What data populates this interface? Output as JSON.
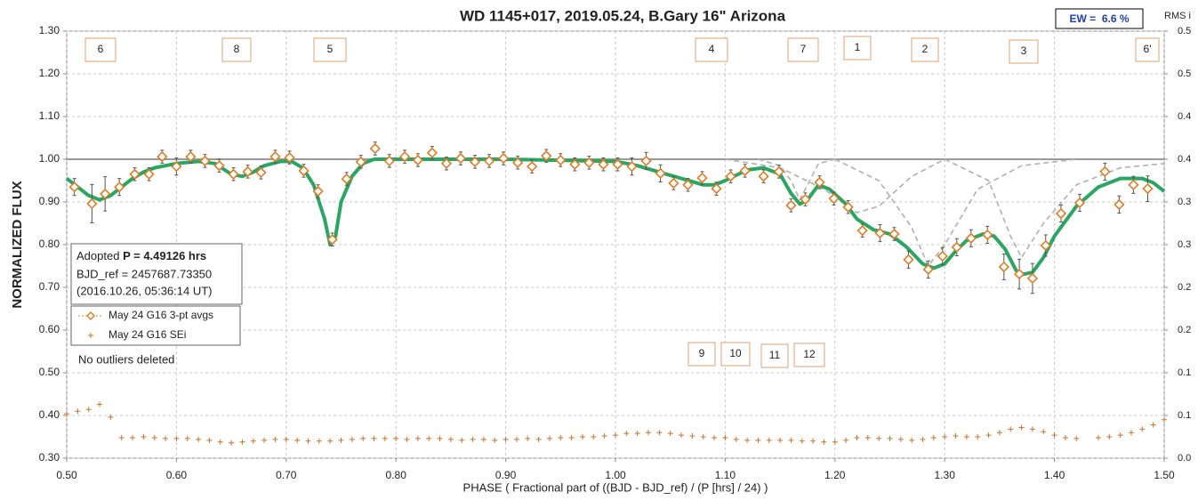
{
  "chart_data": {
    "type": "line",
    "title": "WD 1145+017, 2019.05.24, B.Gary 16\" Arizona",
    "ew_label": "EW =  6.6 %",
    "y2_axis_label": "RMS i",
    "y_axis_label": "NORMALIZED FLUX",
    "x_axis_label": "PHASE ( Fractional part of ((BJD - BJD_ref) / (P [hrs] / 24) )",
    "info_box": {
      "adopted": "Adopted",
      "period": "P = 4.49126 hrs",
      "bjd_ref": "BJD_ref = 2457687.73350",
      "date": "(2016.10.26, 05:36:14 UT)"
    },
    "note": "No outliers deleted",
    "annotations": [
      "6",
      "8",
      "5",
      "4",
      "7",
      "1",
      "2",
      "3",
      "6'",
      "9",
      "10",
      "11",
      "12"
    ],
    "grid": true,
    "reference_line": 1,
    "xlim": [
      0.5,
      1.5
    ],
    "ylim": [
      0.3,
      1.3
    ],
    "y2lim": [
      0,
      0.5
    ],
    "xticks": [
      {
        "value": 0.5,
        "label": "0.50"
      },
      {
        "value": 0.6,
        "label": "0.60"
      },
      {
        "value": 0.7,
        "label": "0.70"
      },
      {
        "value": 0.8,
        "label": "0.80"
      },
      {
        "value": 0.9,
        "label": "0.90"
      },
      {
        "value": 1,
        "label": "1.00"
      },
      {
        "value": 1.1,
        "label": "1.10"
      },
      {
        "value": 1.2,
        "label": "1.20"
      },
      {
        "value": 1.3,
        "label": "1.30"
      },
      {
        "value": 1.4,
        "label": "1.40"
      },
      {
        "value": 1.5,
        "label": "1.50"
      }
    ],
    "yticks": [
      {
        "value": 0.3,
        "label": "0.30"
      },
      {
        "value": 0.4,
        "label": "0.40"
      },
      {
        "value": 0.5,
        "label": "0.50"
      },
      {
        "value": 0.6,
        "label": "0.60"
      },
      {
        "value": 0.7,
        "label": "0.70"
      },
      {
        "value": 0.8,
        "label": "0.80"
      },
      {
        "value": 0.9,
        "label": "0.90"
      },
      {
        "value": 1,
        "label": "1.00"
      },
      {
        "value": 1.1,
        "label": "1.10"
      },
      {
        "value": 1.2,
        "label": "1.20"
      },
      {
        "value": 1.3,
        "label": "1.30"
      }
    ],
    "y2ticks": [
      {
        "value": 0,
        "label": "0.0"
      },
      {
        "value": 0.05,
        "label": "0.1"
      },
      0.1,
      {
        "value": 0.15,
        "label": "0.2"
      },
      0.2,
      {
        "value": 0.25,
        "label": "0.3"
      },
      0.3,
      {
        "value": 0.35,
        "label": "0.4"
      },
      0.4,
      {
        "value": 0.45,
        "label": "0.5"
      },
      0.5
    ],
    "series": [
      {
        "name": "May 24 G16 3-pt avgs",
        "color": "#e07b24",
        "marker": "diamond",
        "x": [
          0.507,
          0.523,
          0.535,
          0.548,
          0.562,
          0.575,
          0.587,
          0.6,
          0.613,
          0.626,
          0.639,
          0.652,
          0.665,
          0.677,
          0.69,
          0.703,
          0.716,
          0.729,
          0.742,
          0.755,
          0.768,
          0.781,
          0.794,
          0.808,
          0.82,
          0.833,
          0.846,
          0.859,
          0.872,
          0.885,
          0.898,
          0.911,
          0.924,
          0.937,
          0.95,
          0.963,
          0.976,
          0.989,
          1.002,
          1.015,
          1.028,
          1.041,
          1.053,
          1.066,
          1.079,
          1.092,
          1.105,
          1.118,
          1.135,
          1.149,
          1.16,
          1.173,
          1.186,
          1.199,
          1.212,
          1.225,
          1.241,
          1.254,
          1.267,
          1.285,
          1.298,
          1.311,
          1.324,
          1.339,
          1.354,
          1.368,
          1.38,
          1.392,
          1.406,
          1.423,
          1.446,
          1.459,
          1.472,
          1.485
        ],
        "values": [
          0.935,
          0.896,
          0.919,
          0.935,
          0.965,
          0.965,
          1.006,
          0.983,
          1.006,
          0.996,
          0.985,
          0.965,
          0.971,
          0.969,
          1.006,
          1.004,
          0.973,
          0.925,
          0.812,
          0.954,
          0.994,
          1.025,
          0.996,
          1.006,
          0.998,
          1.015,
          0.99,
          1.002,
          0.994,
          0.996,
          1.002,
          0.992,
          0.983,
          1.008,
          0.998,
          0.988,
          0.992,
          0.988,
          0.988,
          0.983,
          0.996,
          0.967,
          0.944,
          0.94,
          0.956,
          0.931,
          0.96,
          0.973,
          0.96,
          0.971,
          0.892,
          0.906,
          0.946,
          0.908,
          0.888,
          0.833,
          0.827,
          0.825,
          0.765,
          0.742,
          0.773,
          0.794,
          0.815,
          0.823,
          0.748,
          0.731,
          0.721,
          0.798,
          0.873,
          0.898,
          0.971,
          0.894,
          0.94,
          0.931
        ],
        "errors": [
          0.02,
          0.045,
          0.04,
          0.02,
          0.015,
          0.015,
          0.015,
          0.02,
          0.015,
          0.015,
          0.015,
          0.015,
          0.015,
          0.015,
          0.015,
          0.015,
          0.015,
          0.015,
          0.015,
          0.015,
          0.015,
          0.015,
          0.015,
          0.015,
          0.015,
          0.015,
          0.015,
          0.015,
          0.015,
          0.015,
          0.015,
          0.015,
          0.015,
          0.015,
          0.015,
          0.015,
          0.015,
          0.015,
          0.015,
          0.02,
          0.02,
          0.02,
          0.015,
          0.015,
          0.015,
          0.015,
          0.015,
          0.015,
          0.015,
          0.015,
          0.015,
          0.015,
          0.015,
          0.015,
          0.015,
          0.015,
          0.02,
          0.015,
          0.02,
          0.02,
          0.02,
          0.02,
          0.02,
          0.02,
          0.03,
          0.035,
          0.035,
          0.025,
          0.02,
          0.02,
          0.02,
          0.02,
          0.02,
          0.03
        ]
      },
      {
        "name": "May 24 G16 SEi",
        "color": "#c8742c",
        "marker": "plus",
        "axis": "y2",
        "x": [
          0.5,
          0.51,
          0.52,
          0.53,
          0.54,
          0.55,
          0.56,
          0.57,
          0.58,
          0.59,
          0.6,
          0.61,
          0.62,
          0.63,
          0.64,
          0.65,
          0.66,
          0.67,
          0.68,
          0.69,
          0.7,
          0.71,
          0.72,
          0.73,
          0.74,
          0.75,
          0.76,
          0.77,
          0.78,
          0.79,
          0.8,
          0.81,
          0.82,
          0.83,
          0.84,
          0.85,
          0.86,
          0.87,
          0.88,
          0.89,
          0.9,
          0.91,
          0.92,
          0.93,
          0.94,
          0.95,
          0.96,
          0.97,
          0.98,
          0.99,
          1.0,
          1.01,
          1.02,
          1.03,
          1.04,
          1.05,
          1.06,
          1.07,
          1.08,
          1.09,
          1.1,
          1.11,
          1.12,
          1.13,
          1.14,
          1.15,
          1.16,
          1.17,
          1.18,
          1.19,
          1.2,
          1.21,
          1.22,
          1.23,
          1.24,
          1.25,
          1.26,
          1.27,
          1.28,
          1.29,
          1.3,
          1.31,
          1.32,
          1.33,
          1.34,
          1.35,
          1.36,
          1.37,
          1.38,
          1.39,
          1.4,
          1.41,
          1.42,
          1.43,
          1.44,
          1.45,
          1.46,
          1.47,
          1.48,
          1.49,
          1.5
        ],
        "values": [
          0.052,
          0.055,
          0.057,
          0.063,
          0.048,
          0.024,
          0.024,
          0.025,
          0.024,
          0.023,
          0.023,
          0.023,
          0.022,
          0.021,
          0.019,
          0.018,
          0.019,
          0.02,
          0.021,
          0.022,
          0.022,
          0.021,
          0.02,
          0.02,
          0.02,
          0.021,
          0.022,
          0.023,
          0.023,
          0.023,
          0.023,
          0.022,
          0.023,
          0.023,
          0.023,
          0.022,
          0.021,
          0.022,
          0.022,
          0.021,
          0.022,
          0.022,
          0.023,
          0.022,
          0.023,
          0.024,
          0.024,
          0.025,
          0.025,
          0.026,
          0.027,
          0.029,
          0.029,
          0.03,
          0.03,
          0.029,
          0.027,
          0.026,
          0.025,
          0.024,
          0.024,
          0.022,
          0.021,
          0.021,
          0.021,
          0.021,
          0.021,
          0.02,
          0.02,
          0.019,
          0.019,
          0.021,
          0.024,
          0.024,
          0.023,
          0.023,
          0.022,
          0.021,
          0.022,
          0.024,
          0.025,
          0.026,
          0.025,
          0.025,
          0.027,
          0.03,
          0.034,
          0.036,
          0.034,
          0.031,
          0.027,
          0.024,
          0.023,
          null,
          0.024,
          0.025,
          0.027,
          0.03,
          0.034,
          0.039,
          0.045
        ]
      },
      {
        "color": "#2ba562",
        "line_style": "solid",
        "x": [
          0.5,
          0.51,
          0.52,
          0.53,
          0.54,
          0.55,
          0.56,
          0.57,
          0.58,
          0.6,
          0.62,
          0.635,
          0.65,
          0.66,
          0.67,
          0.68,
          0.695,
          0.705,
          0.715,
          0.725,
          0.735,
          0.74,
          0.745,
          0.75,
          0.76,
          0.77,
          0.78,
          0.8,
          0.9,
          1.0,
          1.02,
          1.04,
          1.06,
          1.08,
          1.09,
          1.1,
          1.12,
          1.135,
          1.15,
          1.16,
          1.168,
          1.175,
          1.185,
          1.195,
          1.21,
          1.22,
          1.235,
          1.25,
          1.265,
          1.28,
          1.29,
          1.3,
          1.31,
          1.32,
          1.335,
          1.345,
          1.355,
          1.365,
          1.37,
          1.38,
          1.39,
          1.4,
          1.42,
          1.44,
          1.46,
          1.48,
          1.49,
          1.5
        ],
        "values": [
          0.955,
          0.935,
          0.915,
          0.905,
          0.915,
          0.935,
          0.955,
          0.97,
          0.98,
          0.99,
          0.995,
          0.99,
          0.965,
          0.96,
          0.97,
          0.985,
          0.995,
          0.995,
          0.98,
          0.94,
          0.86,
          0.8,
          0.82,
          0.9,
          0.96,
          0.99,
          1.0,
          1.0,
          1.0,
          0.995,
          0.985,
          0.97,
          0.955,
          0.94,
          0.94,
          0.95,
          0.975,
          0.98,
          0.965,
          0.92,
          0.895,
          0.905,
          0.94,
          0.93,
          0.895,
          0.86,
          0.835,
          0.825,
          0.795,
          0.755,
          0.745,
          0.755,
          0.785,
          0.81,
          0.825,
          0.82,
          0.79,
          0.74,
          0.73,
          0.735,
          0.77,
          0.82,
          0.89,
          0.935,
          0.955,
          0.955,
          0.945,
          0.925
        ]
      },
      {
        "color": "#b0b0b0",
        "line_style": "dashed",
        "x": [
          1.13,
          1.15,
          1.16,
          1.168,
          1.175,
          1.185,
          1.2
        ],
        "values": [
          1.0,
          0.985,
          0.95,
          0.905,
          0.94,
          0.99,
          1.0
        ]
      },
      {
        "color": "#b0b0b0",
        "line_style": "dashed",
        "x": [
          1.1,
          1.15,
          1.19,
          1.22,
          1.24,
          1.27,
          1.3
        ],
        "values": [
          1.0,
          0.98,
          0.93,
          0.875,
          0.89,
          0.96,
          1.0
        ]
      },
      {
        "color": "#b0b0b0",
        "line_style": "dashed",
        "x": [
          1.2,
          1.24,
          1.27,
          1.285,
          1.3,
          1.33,
          1.37,
          1.42
        ],
        "values": [
          1.0,
          0.95,
          0.84,
          0.75,
          0.8,
          0.93,
          0.985,
          1.0
        ]
      },
      {
        "color": "#b0b0b0",
        "line_style": "dashed",
        "x": [
          1.3,
          1.34,
          1.36,
          1.37,
          1.39,
          1.42,
          1.46,
          1.5
        ],
        "values": [
          1.0,
          0.95,
          0.82,
          0.77,
          0.85,
          0.94,
          0.98,
          0.99
        ]
      }
    ]
  }
}
